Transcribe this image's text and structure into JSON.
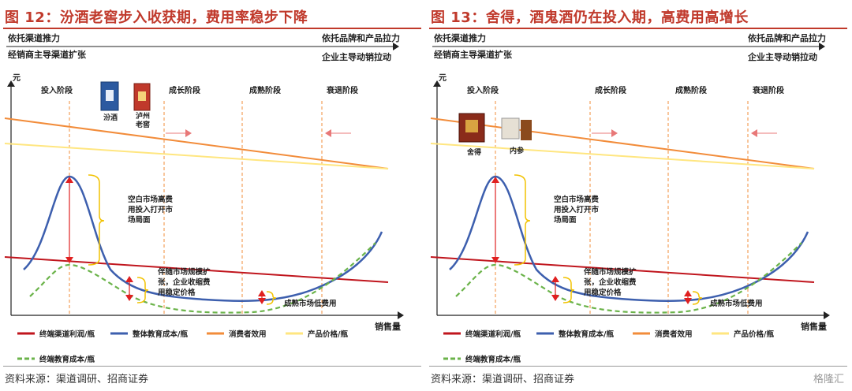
{
  "left": {
    "title": "图 12：汾酒老窖步入收获期，费用率稳步下降",
    "top_left_1": "依托渠道推力",
    "top_right_1": "依托品牌和产品拉力",
    "top_left_2": "经销商主导渠道扩张",
    "top_right_2": "企业主导动销拉动",
    "y_unit": "元",
    "x_label": "销售量",
    "stages": [
      "投入阶段",
      "成长阶段",
      "成熟阶段",
      "衰退阶段"
    ],
    "products": [
      "汾酒",
      "泸州\n老窖"
    ],
    "annot_high_cost": "空白市场高费\n用投入打开市\n场局面",
    "annot_scale": "伴随市场规模扩\n张，企业收缩费\n用稳定价格",
    "annot_mature": "成熟市场低费用",
    "legend": [
      "终端渠道利润/瓶",
      "整体教育成本/瓶",
      "消费者效用",
      "产品价格/瓶",
      "终端教育成本/瓶"
    ],
    "source": "资料来源：渠道调研、招商证券"
  },
  "right": {
    "title": "图 13：舍得，酒鬼酒仍在投入期，高费用高增长",
    "top_left_1": "依托渠道推力",
    "top_right_1": "依托品牌和产品拉力",
    "top_left_2": "经销商主导渠道扩张",
    "top_right_2": "企业主导动销拉动",
    "y_unit": "元",
    "x_label": "销售量",
    "stages": [
      "投入阶段",
      "成长阶段",
      "成熟阶段",
      "衰退阶段"
    ],
    "products": [
      "舍得",
      "内参"
    ],
    "annot_high_cost": "空白市场高费\n用投入打开市\n场局面",
    "annot_scale": "伴随市场规模扩\n张，企业收缩费\n用稳定价格",
    "annot_mature": "成熟市场低费用",
    "legend": [
      "终端渠道利润/瓶",
      "整体教育成本/瓶",
      "消费者效用",
      "产品价格/瓶",
      "终端教育成本/瓶"
    ],
    "source": "资料来源：渠道调研、招商证券",
    "watermark": "格隆汇"
  },
  "colors": {
    "title": "#c0392b",
    "channel_profit": "#c0151d",
    "total_edu": "#3d5fae",
    "consumer_utility": "#f28c3a",
    "price": "#ffe680",
    "terminal_edu": "#6bb34a",
    "stage_line": "#f28c3a",
    "arrow_red": "#e02020",
    "bracket": "#f2c200"
  }
}
